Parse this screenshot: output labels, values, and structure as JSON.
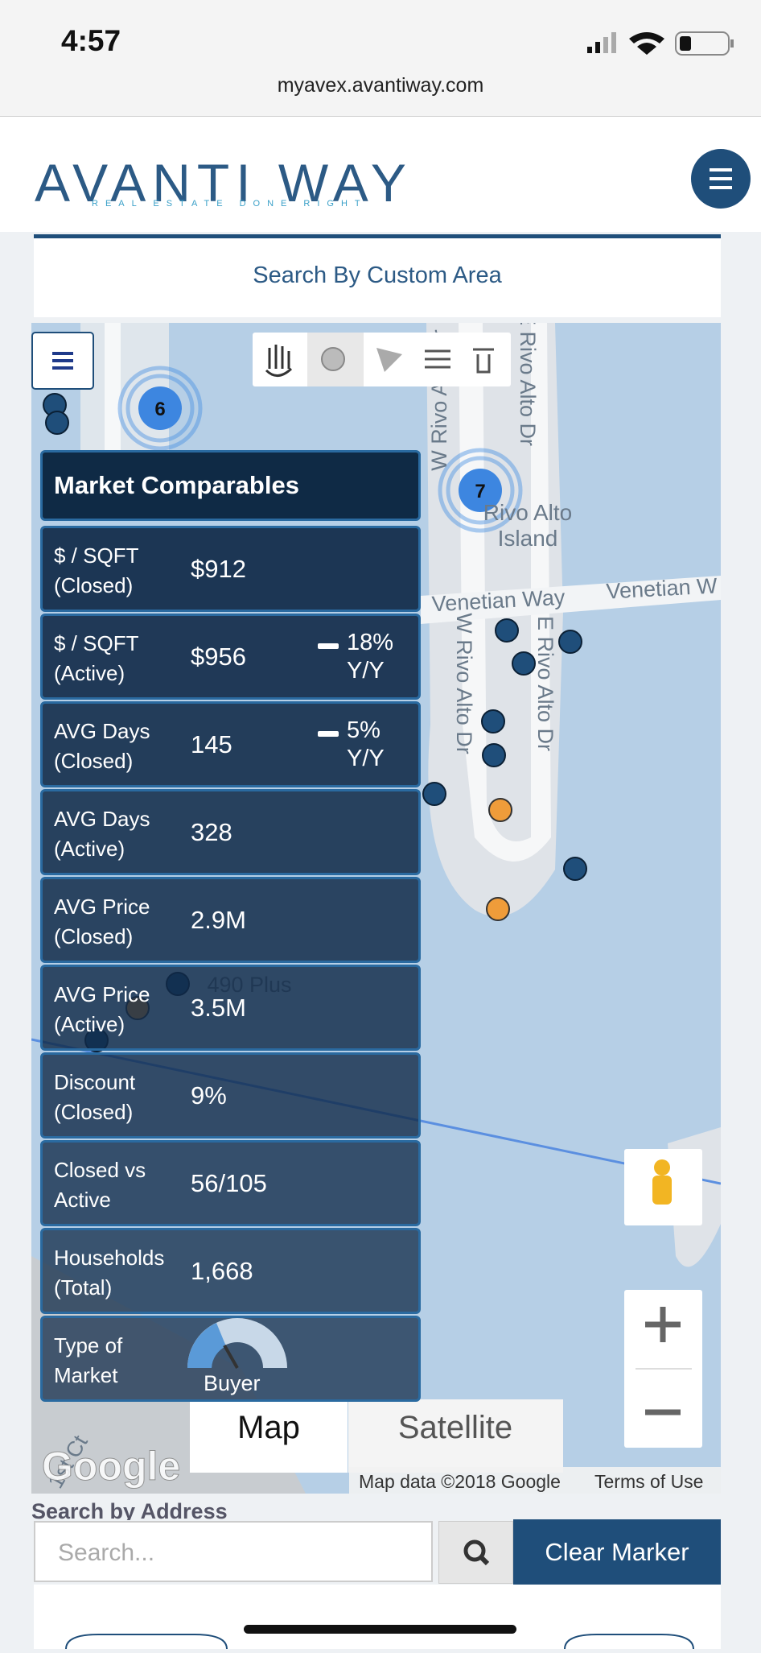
{
  "status_bar": {
    "time": "4:57"
  },
  "url": "myavex.avantiway.com",
  "header": {
    "logo": "AVANTI WAY",
    "tagline": "REAL ESTATE DONE RIGHT"
  },
  "custom_area": "Search By Custom Area",
  "map": {
    "clusters": [
      "6",
      "7"
    ],
    "street_labels": [
      {
        "text": "W Rivo Alto Dr"
      },
      {
        "text": "E Rivo Alto Dr"
      },
      {
        "text": "Venetian Way"
      },
      {
        "text": "Venetian W"
      },
      {
        "text": "W Rivo Alto Dr"
      },
      {
        "text": "E Rivo Alto Dr"
      },
      {
        "text": "490 Plus"
      },
      {
        "text": "1st Ct"
      }
    ],
    "island": [
      "Rivo Alto",
      "Island"
    ],
    "type_buttons": [
      "Map",
      "Satellite"
    ],
    "google": "Google",
    "attribution": "Map data ©2018 Google",
    "terms": "Terms of Use"
  },
  "market_comparables": {
    "title": "Market Comparables",
    "rows": [
      {
        "label": [
          "$ / SQFT",
          "(Closed)"
        ],
        "value": "$912"
      },
      {
        "label": [
          "$ / SQFT",
          "(Active)"
        ],
        "value": "$956",
        "change": [
          "18%",
          "Y/Y"
        ]
      },
      {
        "label": [
          "AVG Days",
          "(Closed)"
        ],
        "value": "145",
        "change": [
          "5%",
          "Y/Y"
        ]
      },
      {
        "label": [
          "AVG Days",
          "(Active)"
        ],
        "value": "328"
      },
      {
        "label": [
          "AVG Price",
          "(Closed)"
        ],
        "value": "2.9M"
      },
      {
        "label": [
          "AVG Price",
          "(Active)"
        ],
        "value": "3.5M"
      },
      {
        "label": [
          "Discount",
          "(Closed)"
        ],
        "value": "9%"
      },
      {
        "label": [
          "Closed vs",
          "Active"
        ],
        "value": "56/105"
      },
      {
        "label": [
          "Households",
          "(Total)"
        ],
        "value": "1,668"
      }
    ],
    "type_of_market": {
      "label": [
        "Type of",
        "Market"
      ],
      "value": "Buyer"
    }
  },
  "search": {
    "heading": "Search by Address",
    "placeholder": "Search...",
    "clear": "Clear Marker"
  }
}
